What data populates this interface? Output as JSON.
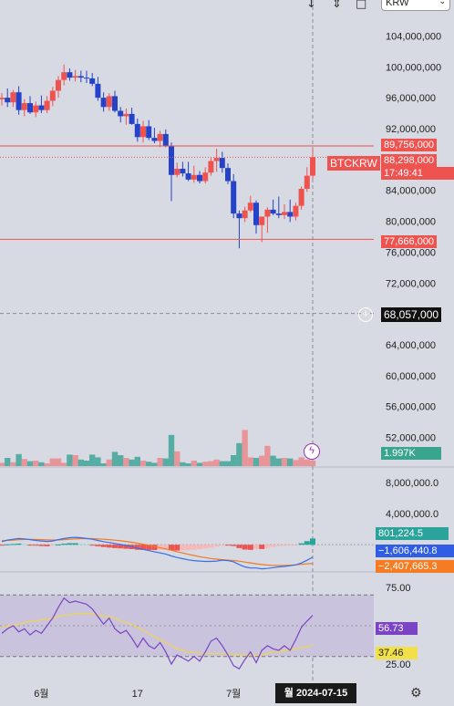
{
  "header": {
    "currency_value": "KRW",
    "icons": [
      "arrow-down-icon",
      "arrows-collapse-icon",
      "square-icon",
      "chevron-down-icon"
    ]
  },
  "price_scale": {
    "ticks": [
      "104,000,000",
      "100,000,000",
      "96,000,000",
      "92,000,000",
      "84,000,000",
      "80,000,000",
      "76,000,000",
      "72,000,000",
      "64,000,000",
      "60,000,000",
      "56,000,000",
      "52,000,000"
    ],
    "high_line": "89,756,000",
    "last_price": "88,298,000",
    "countdown": "17:49:41",
    "low_line": "77,666,000",
    "crosshair_price": "68,057,000",
    "symbol": "BTCKRW",
    "volume": "1.997K"
  },
  "macd_scale": {
    "ticks": [
      "8,000,000.0",
      "4,000,000.0"
    ],
    "histogram": "801,224.5",
    "macd": "−1,606,440.8",
    "signal": "−2,407,665.3"
  },
  "rsi_scale": {
    "ticks": [
      "75.00",
      "25.00"
    ],
    "rsi": "56.73",
    "rsi_ma": "37.46"
  },
  "time_axis": {
    "labels": [
      "6월",
      "17",
      "7월"
    ],
    "cursor": "월 2024-07-15"
  },
  "colors": {
    "up": "#ef5350",
    "down": "#2443c9",
    "background": "#d7dae3",
    "macd": "#3a6de8",
    "signal": "#f07a22",
    "rsi": "#7b44c4",
    "rsi_ma": "#f2d34a",
    "vol_up": "#e8959a",
    "vol_down": "#56ada3"
  },
  "chart_data": {
    "type": "candlestick",
    "symbol": "BTCKRW",
    "y_unit": "KRW",
    "ylim": [
      49000000,
      107000000
    ],
    "candles": [
      [
        95800000,
        96600000,
        95000000,
        96000000
      ],
      [
        96000000,
        97200000,
        94800000,
        95400000
      ],
      [
        95400000,
        97000000,
        94800000,
        96700000
      ],
      [
        96700000,
        97500000,
        93800000,
        94400000
      ],
      [
        94400000,
        95800000,
        93600000,
        95300000
      ],
      [
        95300000,
        96200000,
        93900000,
        94100000
      ],
      [
        94100000,
        95500000,
        93500000,
        95000000
      ],
      [
        95000000,
        96300000,
        94000000,
        94400000
      ],
      [
        94400000,
        96200000,
        94000000,
        95600000
      ],
      [
        95600000,
        97400000,
        94900000,
        96900000
      ],
      [
        96900000,
        98800000,
        96000000,
        98300000
      ],
      [
        98300000,
        100300000,
        97600000,
        99300000
      ],
      [
        99300000,
        99800000,
        98200000,
        98600000
      ],
      [
        98600000,
        99600000,
        98100000,
        98800000
      ],
      [
        98800000,
        99500000,
        98000000,
        98600000
      ],
      [
        98600000,
        99500000,
        97900000,
        98500000
      ],
      [
        98500000,
        99200000,
        97500000,
        97800000
      ],
      [
        97800000,
        98700000,
        95600000,
        96000000
      ],
      [
        96000000,
        96700000,
        94200000,
        94800000
      ],
      [
        94800000,
        96600000,
        94300000,
        96200000
      ],
      [
        96200000,
        96900000,
        94100000,
        94300000
      ],
      [
        94300000,
        94800000,
        92800000,
        93600000
      ],
      [
        93600000,
        94600000,
        92500000,
        93900000
      ],
      [
        93900000,
        94700000,
        92500000,
        92600000
      ],
      [
        92600000,
        93300000,
        90300000,
        90900000
      ],
      [
        90900000,
        93000000,
        90200000,
        92300000
      ],
      [
        92300000,
        93100000,
        90500000,
        90800000
      ],
      [
        90800000,
        92100000,
        90100000,
        90400000
      ],
      [
        90400000,
        91700000,
        89600000,
        91300000
      ],
      [
        91300000,
        91900000,
        89600000,
        89700000
      ],
      [
        89700000,
        90200000,
        82600000,
        86000000
      ],
      [
        86000000,
        87600000,
        85700000,
        86800000
      ],
      [
        86800000,
        87700000,
        85800000,
        86200000
      ],
      [
        86200000,
        87700000,
        85200000,
        85400000
      ],
      [
        85400000,
        87200000,
        85000000,
        86000000
      ],
      [
        86000000,
        86500000,
        84900000,
        85200000
      ],
      [
        85200000,
        87000000,
        84900000,
        86300000
      ],
      [
        86300000,
        88200000,
        85900000,
        87800000
      ],
      [
        87800000,
        89400000,
        86400000,
        88200000
      ],
      [
        88200000,
        89000000,
        86300000,
        86900000
      ],
      [
        86900000,
        87500000,
        84800000,
        85200000
      ],
      [
        85200000,
        86100000,
        80400000,
        81000000
      ],
      [
        81000000,
        81400000,
        76500000,
        80400000
      ],
      [
        80400000,
        81900000,
        79900000,
        81400000
      ],
      [
        81400000,
        83300000,
        81200000,
        82400000
      ],
      [
        82400000,
        82700000,
        78400000,
        79500000
      ],
      [
        79500000,
        80400000,
        77300000,
        80600000
      ],
      [
        80600000,
        81800000,
        78500000,
        81500000
      ],
      [
        81500000,
        82800000,
        80800000,
        81000000
      ],
      [
        81000000,
        83200000,
        80400000,
        80800000
      ],
      [
        80800000,
        82200000,
        80300000,
        81200000
      ],
      [
        81200000,
        82800000,
        79900000,
        80600000
      ],
      [
        80600000,
        82400000,
        80100000,
        82000000
      ],
      [
        82000000,
        84500000,
        81500000,
        84200000
      ],
      [
        84200000,
        87000000,
        83800000,
        85900000
      ],
      [
        85900000,
        89400000,
        85500000,
        88300000
      ]
    ],
    "volume_max": 1,
    "volumes": [
      0.06,
      0.15,
      0.07,
      0.22,
      0.13,
      0.09,
      0.1,
      0.07,
      0.05,
      0.14,
      0.14,
      0.06,
      0.21,
      0.2,
      0.12,
      0.1,
      0.21,
      0.16,
      0.05,
      0.12,
      0.26,
      0.2,
      0.15,
      0.12,
      0.17,
      0.1,
      0.08,
      0.06,
      0.15,
      0.14,
      0.57,
      0.27,
      0.07,
      0.05,
      0.1,
      0.06,
      0.08,
      0.09,
      0.12,
      0.09,
      0.09,
      0.2,
      0.42,
      0.66,
      0.16,
      0.15,
      0.19,
      0.37,
      0.19,
      0.14,
      0.15,
      0.14,
      0.11,
      0.16,
      0.12,
      0.1
    ],
    "lines": {
      "high": 89756000,
      "last": 88298000,
      "low": 77666000,
      "crosshair": 68057000
    },
    "macd": {
      "ylim": [
        -3500000,
        10000000
      ],
      "macd": [
        400000,
        600000,
        700000,
        800000,
        750000,
        650000,
        550000,
        480000,
        420000,
        480000,
        650000,
        800000,
        900000,
        950000,
        900000,
        800000,
        700000,
        550000,
        400000,
        280000,
        150000,
        30000,
        -100000,
        -250000,
        -450000,
        -600000,
        -750000,
        -900000,
        -1050000,
        -1200000,
        -1450000,
        -1650000,
        -1800000,
        -1950000,
        -2050000,
        -2100000,
        -2150000,
        -2150000,
        -2100000,
        -2000000,
        -2050000,
        -2200000,
        -2550000,
        -2850000,
        -3000000,
        -3000000,
        -3100000,
        -3050000,
        -2950000,
        -2850000,
        -2800000,
        -2700000,
        -2600000,
        -2350000,
        -2000000,
        -1606440.8
      ],
      "signal": [
        500000,
        550000,
        600000,
        650000,
        680000,
        680000,
        670000,
        650000,
        620000,
        600000,
        620000,
        660000,
        700000,
        750000,
        780000,
        790000,
        780000,
        750000,
        700000,
        650000,
        580000,
        500000,
        420000,
        320000,
        200000,
        70000,
        -70000,
        -220000,
        -380000,
        -540000,
        -710000,
        -900000,
        -1060000,
        -1230000,
        -1390000,
        -1540000,
        -1660000,
        -1770000,
        -1860000,
        -1930000,
        -1980000,
        -2030000,
        -2120000,
        -2230000,
        -2340000,
        -2450000,
        -2550000,
        -2620000,
        -2660000,
        -2670000,
        -2660000,
        -2630000,
        -2590000,
        -2530000,
        -2460000,
        -2407665.3
      ],
      "histogram": [
        -100000,
        50000,
        100000,
        150000,
        70000,
        -30000,
        -120000,
        -170000,
        -200000,
        -120000,
        30000,
        140000,
        200000,
        200000,
        120000,
        10000,
        -80000,
        -200000,
        -300000,
        -370000,
        -430000,
        -470000,
        -520000,
        -570000,
        -650000,
        -670000,
        -680000,
        -680000,
        -670000,
        -660000,
        -740000,
        -750000,
        -740000,
        -720000,
        -660000,
        -560000,
        -490000,
        -380000,
        -240000,
        -70000,
        -70000,
        -170000,
        -430000,
        -620000,
        -660000,
        -550000,
        -550000,
        -430000,
        -290000,
        -180000,
        -140000,
        -70000,
        -10000,
        180000,
        460000,
        801224.5
      ]
    },
    "rsi": {
      "ylim": [
        15,
        85
      ],
      "bands": [
        70,
        30
      ],
      "rsi": [
        45,
        48,
        50,
        46,
        48,
        44,
        47,
        45,
        50,
        55,
        62,
        68,
        65,
        66,
        65,
        64,
        61,
        56,
        51,
        55,
        48,
        45,
        47,
        42,
        36,
        42,
        37,
        35,
        39,
        33,
        25,
        31,
        29,
        27,
        30,
        27,
        33,
        40,
        42,
        37,
        31,
        24,
        22,
        28,
        33,
        26,
        34,
        37,
        35,
        34,
        37,
        34,
        41,
        49,
        53,
        56.73
      ],
      "rsi_ma": [
        49,
        50,
        50,
        51,
        52,
        53,
        53,
        54,
        54,
        55,
        56,
        57,
        57,
        58,
        58,
        58,
        58,
        57,
        56,
        56,
        55,
        53,
        52,
        51,
        49,
        47,
        45,
        43,
        41,
        39,
        37,
        35,
        34,
        33,
        33,
        32,
        32,
        32,
        32,
        32,
        32,
        31,
        31,
        31,
        31,
        31,
        31,
        32,
        33,
        33,
        34,
        34,
        35,
        36,
        36,
        37.46
      ]
    }
  }
}
